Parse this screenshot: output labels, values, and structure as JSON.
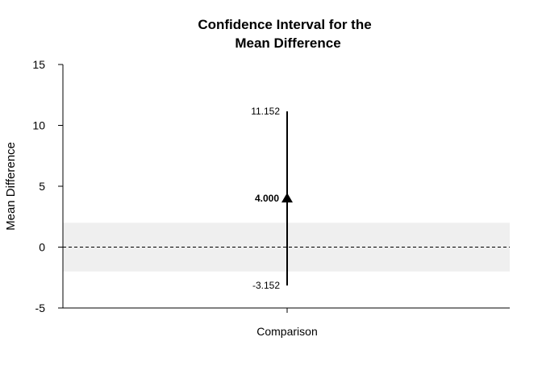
{
  "chart_data": {
    "type": "interval",
    "title_line1": "Confidence Interval for the",
    "title_line2": "Mean Difference",
    "xlabel": "",
    "ylabel": "Mean Difference",
    "categories": [
      "Comparison"
    ],
    "ylim": [
      -5,
      15
    ],
    "yticks": [
      -5,
      0,
      5,
      10,
      15
    ],
    "ytick_labels": [
      "-5",
      "0",
      "5",
      "10",
      "15"
    ],
    "reference_line": 0,
    "equivalence_band": [
      -2,
      2
    ],
    "intervals": [
      {
        "category": "Comparison",
        "estimate": 4.0,
        "lower": -3.152,
        "upper": 11.152,
        "estimate_label": "4.000",
        "lower_label": "-3.152",
        "upper_label": "11.152"
      }
    ],
    "colors": {
      "band": "#efefef",
      "line": "#000000"
    }
  }
}
